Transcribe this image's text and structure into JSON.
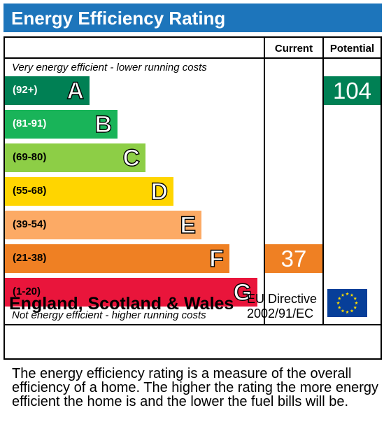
{
  "title": "Energy Efficiency Rating",
  "columns": {
    "current": "Current",
    "potential": "Potential"
  },
  "top_note": "Very energy efficient - lower running costs",
  "bottom_note": "Not energy efficient - higher running costs",
  "bands": [
    {
      "range": "(92+)",
      "letter": "A",
      "color": "#008054",
      "range_color": "#ffffff"
    },
    {
      "range": "(81-91)",
      "letter": "B",
      "color": "#19b459",
      "range_color": "#ffffff"
    },
    {
      "range": "(69-80)",
      "letter": "C",
      "color": "#8dce46",
      "range_color": "#000000"
    },
    {
      "range": "(55-68)",
      "letter": "D",
      "color": "#ffd500",
      "range_color": "#000000"
    },
    {
      "range": "(39-54)",
      "letter": "E",
      "color": "#fcaa65",
      "range_color": "#000000"
    },
    {
      "range": "(21-38)",
      "letter": "F",
      "color": "#ef8023",
      "range_color": "#000000"
    },
    {
      "range": "(1-20)",
      "letter": "G",
      "color": "#e9153b",
      "range_color": "#000000"
    }
  ],
  "current": {
    "value": "37",
    "band": "F",
    "color": "#ef8023"
  },
  "potential": {
    "value": "104",
    "band": "A",
    "color": "#008054"
  },
  "footer": {
    "region": "England, Scotland & Wales",
    "directive_line1": "EU Directive",
    "directive_line2": "2002/91/EC",
    "flag_icon": "eu-flag-icon"
  },
  "description": "The energy efficiency rating is a measure of the overall efficiency of a home. The higher the rating the more energy efficient the home is and the lower the fuel bills will be."
}
